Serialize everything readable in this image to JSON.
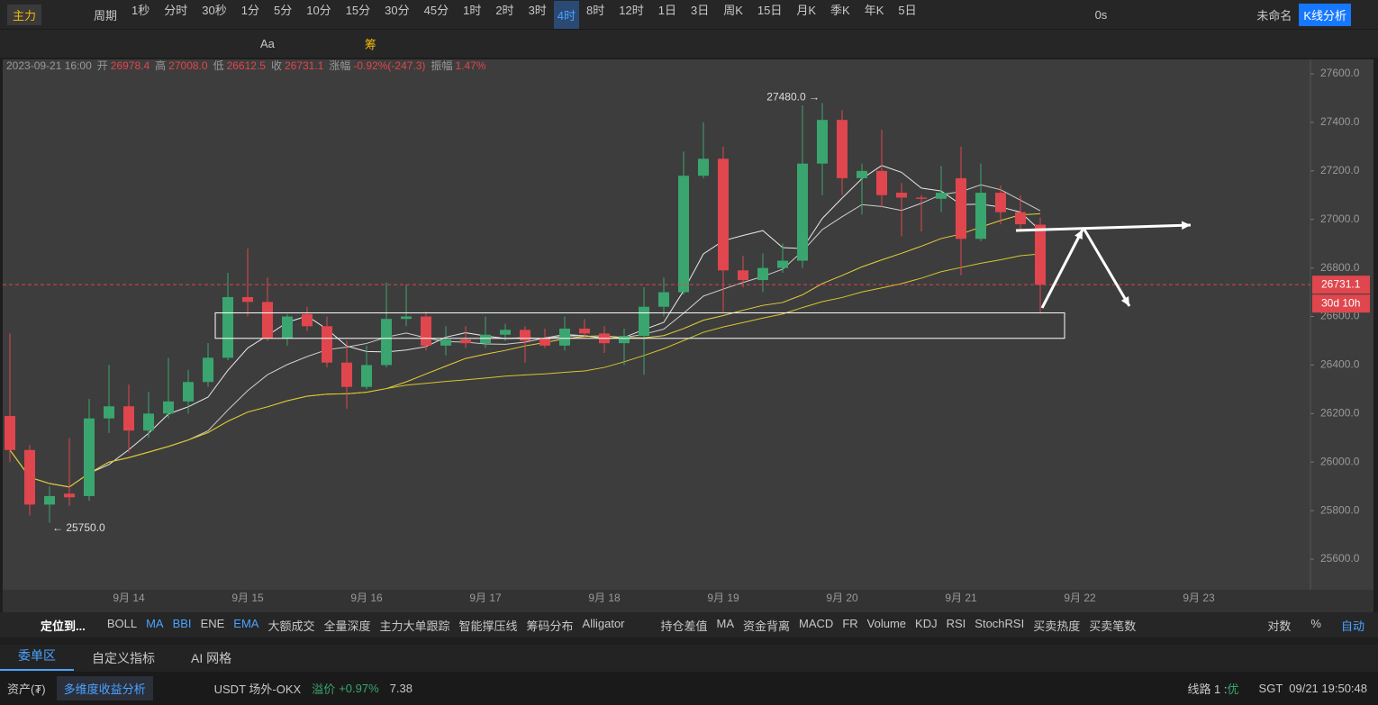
{
  "toolbar": {
    "main": "主力",
    "period": "周期",
    "periods": [
      "1秒",
      "分时",
      "30秒",
      "1分",
      "5分",
      "10分",
      "15分",
      "30分",
      "45分",
      "1时",
      "2时",
      "3时",
      "4时",
      "8时",
      "12时",
      "1日",
      "3日",
      "周K",
      "15日",
      "月K",
      "季K",
      "年K",
      "5日"
    ],
    "active_period": 12,
    "countdown": "0s",
    "layout_name": "未命名",
    "kline_button": "K线分析"
  },
  "drawing_tools": {
    "text_tool": "Aa",
    "chip_tool": "筹"
  },
  "ohlc_header": {
    "date": "2023-09-21 16:00",
    "open_label": "开",
    "open": "26978.4",
    "high_label": "高",
    "high": "27008.0",
    "low_label": "低",
    "low": "26612.5",
    "close_label": "收",
    "close": "26731.1",
    "change_label": "涨幅",
    "change": "-0.92%(-247.3)",
    "amplitude_label": "振幅",
    "amplitude": "1.47%"
  },
  "chart": {
    "open": [
      26190,
      26050,
      25825,
      25870,
      25860,
      26180,
      26230,
      26130,
      26200,
      26250,
      26330,
      26430,
      26680,
      26660,
      26510,
      26610,
      26560,
      26410,
      26310,
      26400,
      26590,
      26600,
      26480,
      26505,
      26490,
      26525,
      26545,
      26510,
      26480,
      26550,
      26530,
      26490,
      26520,
      26640,
      26700,
      27180,
      27250,
      26790,
      26750,
      26800,
      26830,
      27230,
      27410,
      27170,
      27200,
      27110,
      27090,
      27085,
      27170,
      26920,
      27110,
      27030,
      26978.4
    ],
    "high": [
      26530,
      26070,
      25900,
      26100,
      26260,
      26400,
      26320,
      26290,
      26430,
      26380,
      26490,
      26780,
      26880,
      26760,
      26610,
      26640,
      26600,
      26500,
      26480,
      26740,
      26730,
      26620,
      26560,
      26560,
      26600,
      26570,
      26560,
      26550,
      26600,
      26590,
      26560,
      26550,
      26720,
      26760,
      27280,
      27400,
      27300,
      26850,
      26860,
      26900,
      27470,
      27480,
      27450,
      27230,
      27370,
      27150,
      27100,
      27220,
      27300,
      27230,
      27140,
      27100,
      27008.0
    ],
    "low": [
      26000,
      25780,
      25750,
      25820,
      25840,
      26120,
      26040,
      26100,
      26180,
      26200,
      26310,
      26420,
      26600,
      26500,
      26480,
      26540,
      26390,
      26220,
      26300,
      26390,
      26560,
      26460,
      26440,
      26470,
      26470,
      26500,
      26410,
      26470,
      26460,
      26510,
      26450,
      26400,
      26360,
      26600,
      26690,
      27170,
      26620,
      26720,
      26700,
      26780,
      26800,
      27100,
      27100,
      27020,
      27050,
      26930,
      26950,
      27030,
      26770,
      26910,
      26980,
      26960,
      26612.5
    ],
    "close": [
      26050,
      25825,
      25860,
      25855,
      26180,
      26230,
      26130,
      26200,
      26250,
      26330,
      26430,
      26680,
      26660,
      26510,
      26600,
      26560,
      26410,
      26310,
      26400,
      26590,
      26600,
      26480,
      26505,
      26490,
      26525,
      26545,
      26500,
      26480,
      26550,
      26530,
      26490,
      26520,
      26640,
      26700,
      27180,
      27250,
      26790,
      26750,
      26800,
      26830,
      27230,
      27410,
      27170,
      27200,
      27100,
      27090,
      27085,
      27110,
      26920,
      27110,
      27030,
      26980,
      26731.1
    ],
    "ylim": [
      25500,
      27650
    ],
    "yticks": [
      {
        "value": 25600,
        "label": "25600.0"
      },
      {
        "value": 25800,
        "label": "25800.0"
      },
      {
        "value": 26000,
        "label": "26000.0"
      },
      {
        "value": 26200,
        "label": "26200.0"
      },
      {
        "value": 26400,
        "label": "26400.0"
      },
      {
        "value": 26600,
        "label": "26600.0"
      },
      {
        "value": 26800,
        "label": "26800.0"
      },
      {
        "value": 27000,
        "label": "27000.0"
      },
      {
        "value": 27200,
        "label": "27200.0"
      },
      {
        "value": 27400,
        "label": "27400.0"
      },
      {
        "value": 27600,
        "label": "27600.0"
      }
    ],
    "date_labels": [
      "9月 14",
      "9月 15",
      "9月 16",
      "9月 17",
      "9月 18",
      "9月 19",
      "9月 20",
      "9月 21",
      "9月 22",
      "9月 23"
    ],
    "up_color": "#3aa56e",
    "down_color": "#e0464d",
    "high_label": "27480.0 →",
    "low_label": "← 25750.0",
    "last_price": {
      "value": 26731.1,
      "label": "26731.1"
    },
    "countdown": "30d 10h",
    "zone": [
      26510,
      26615
    ]
  },
  "indicator_bar": {
    "locate": "定位到...",
    "main": [
      "BOLL",
      "MA",
      "BBI",
      "ENE",
      "EMA",
      "大额成交",
      "全量深度",
      "主力大单跟踪",
      "智能撑压线",
      "筹码分布",
      "Alligator"
    ],
    "main_active": [
      1,
      2,
      4
    ],
    "sub": [
      "持仓差值",
      "MA",
      "资金背离",
      "MACD",
      "FR",
      "Volume",
      "KDJ",
      "RSI",
      "StochRSI",
      "买卖热度",
      "买卖笔数"
    ],
    "right": [
      "对数",
      "%",
      "自动"
    ]
  },
  "tabs": [
    "委单区",
    "自定义指标",
    "AI 网格"
  ],
  "status": {
    "assets": "资产(₮)",
    "analysis": "多维度收益分析",
    "market": "USDT 场外-OKX",
    "premium_label": "溢价",
    "premium": "+0.97%",
    "rate": "7.38",
    "line": "线路 1 : ",
    "line_quality": "优",
    "clock": "SGT  09/21 19:50:48"
  }
}
